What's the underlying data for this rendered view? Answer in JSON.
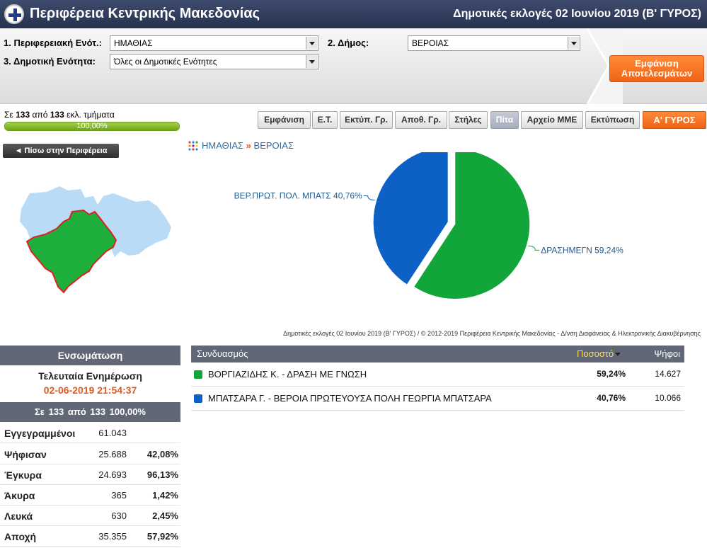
{
  "header": {
    "site_title": "Περιφέρεια Κεντρικής Μακεδονίας",
    "election_title": "Δημοτικές εκλογές 02 Ιουνίου 2019 (Β' ΓΥΡΟΣ)"
  },
  "filters": {
    "regional_unit_label": "1. Περιφερειακή Ενότ.:",
    "regional_unit_value": "ΗΜΑΘΙΑΣ",
    "municipality_label": "2. Δήμος:",
    "municipality_value": "ΒΕΡΟΙΑΣ",
    "municipal_unit_label": "3. Δημοτική Ενότητα:",
    "municipal_unit_value": "Όλες οι Δημοτικές Ενότητες",
    "show_results_line1": "Εμφάνιση",
    "show_results_line2": "Αποτελεσμάτων"
  },
  "progress": {
    "prefix": "Σε",
    "counted": "133",
    "middle": "από",
    "total": "133",
    "suffix": "εκλ. τμήματα",
    "percent_label": "100,00%",
    "fraction": 1.0
  },
  "toolbar": {
    "buttons": [
      "Εμφάνιση",
      "Ε.Τ.",
      "Εκτύπ. Γρ.",
      "Αποθ. Γρ.",
      "Στήλες",
      "Πίτα",
      "Αρχείο ΜΜΕ",
      "Εκτύπωση",
      "Α' ΓΥΡΟΣ"
    ],
    "active_index": 5
  },
  "nav": {
    "back_label": "◄ Πίσω στην Περιφέρεια",
    "crumb_region": "ΗΜΑΘΙΑΣ",
    "crumb_sep": "»",
    "crumb_municipality": "ΒΕΡΟΙΑΣ"
  },
  "chart_data": {
    "type": "pie",
    "slices": [
      {
        "label": "ΔΡΑΣΗΜΕΓΝ 59,24%",
        "value": 59.24,
        "color": "#12a53a"
      },
      {
        "label": "ΒΕΡ.ΠΡΩΤ. ΠΟΛ. ΜΠΑΤΣ 40,76%",
        "value": 40.76,
        "color": "#0d60c4"
      }
    ]
  },
  "footer": {
    "copyright": "Δημοτικές εκλογές 02 Ιουνίου 2019 (Β' ΓΥΡΟΣ) / © 2012-2019 Περιφέρεια Κεντρικής Μακεδονίας - Δ/νση Διαφάνειας & Ηλεκτρονικής Διακυβέρνησης"
  },
  "stats": {
    "header": "Ενσωμάτωση",
    "last_update_label": "Τελευταία Ενημέρωση",
    "last_update_time": "02-06-2019 21:54:37",
    "summary": "Σε 133 από 133 100,00%",
    "rows": [
      {
        "label": "Εγγεγραμμένοι",
        "value": "61.043",
        "pct": ""
      },
      {
        "label": "Ψήφισαν",
        "value": "25.688",
        "pct": "42,08%"
      },
      {
        "label": "Έγκυρα",
        "value": "24.693",
        "pct": "96,13%"
      },
      {
        "label": "Άκυρα",
        "value": "365",
        "pct": "1,42%"
      },
      {
        "label": "Λευκά",
        "value": "630",
        "pct": "2,45%"
      },
      {
        "label": "Αποχή",
        "value": "35.355",
        "pct": "57,92%"
      }
    ]
  },
  "results": {
    "col_combination": "Συνδυασμός",
    "col_percent": "Ποσοστό",
    "col_votes": "Ψήφοι",
    "rows": [
      {
        "name": "ΒΟΡΓΙΑΖΙΔΗΣ Κ. - ΔΡΑΣΗ ΜΕ ΓΝΩΣΗ",
        "pct": "59,24%",
        "votes": "14.627",
        "color": "#12a53a"
      },
      {
        "name": "ΜΠΑΤΣΑΡΑ Γ. - ΒΕΡΟΙΑ ΠΡΩΤΕΥΟΥΣΑ ΠΟΛΗ ΓΕΩΡΓΙΑ ΜΠΑΤΣΑΡΑ",
        "pct": "40,76%",
        "votes": "10.066",
        "color": "#0d60c4"
      }
    ]
  },
  "map": {
    "region_color": "#b9dbf5",
    "selected_color": "#1eae3c",
    "selected_border": "#e02020"
  }
}
